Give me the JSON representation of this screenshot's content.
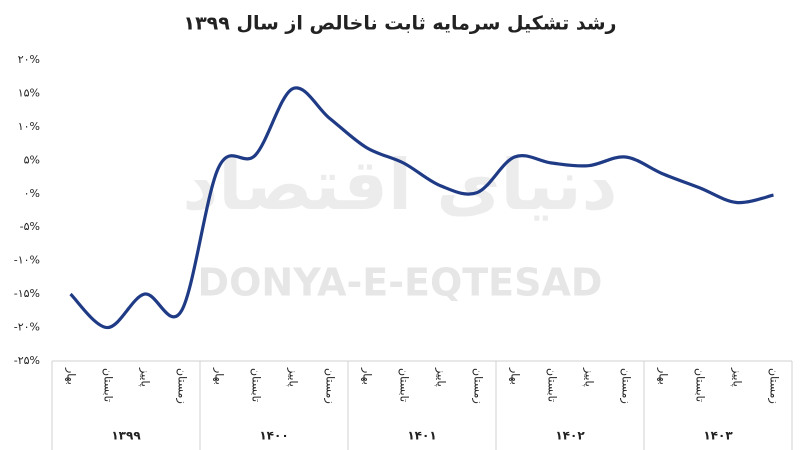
{
  "chart_data": {
    "type": "line",
    "title": "رشد تشکیل سرمایه ثابت ناخالص از سال ۱۳۹۹",
    "watermark": [
      "دنیای اقتصاد",
      "DONYA-E-EQTESAD"
    ],
    "categories": [
      "بهار",
      "تابستان",
      "پاییز",
      "زمستان",
      "بهار",
      "تابستان",
      "پاییز",
      "زمستان",
      "بهار",
      "تابستان",
      "پاییز",
      "زمستان",
      "بهار",
      "تابستان",
      "پاییز",
      "زمستان",
      "بهار",
      "تابستان",
      "پاییز",
      "زمستان"
    ],
    "group_labels": [
      "۱۳۹۹",
      "۱۴۰۰",
      "۱۴۰۱",
      "۱۴۰۲",
      "۱۴۰۳"
    ],
    "values": [
      -15,
      -20,
      -15,
      -17.5,
      3.9,
      5.8,
      15.7,
      11.3,
      6.9,
      4.6,
      1.2,
      0.2,
      5.5,
      4.6,
      4.2,
      5.5,
      3,
      0.9,
      -1.3,
      -0.2
    ],
    "color": "#1f3b86",
    "smooth": true,
    "ylim": [
      -25,
      20
    ],
    "yticks": [
      {
        "value": 20,
        "label": "۲۰%"
      },
      {
        "value": 15,
        "label": "۱۵%"
      },
      {
        "value": 10,
        "label": "۱۰%"
      },
      {
        "value": 5,
        "label": "۵%"
      },
      {
        "value": 0,
        "label": "۰%"
      },
      {
        "value": -5,
        "label": "-۵%"
      },
      {
        "value": -10,
        "label": "-۱۰%"
      },
      {
        "value": -15,
        "label": "-۱۵%"
      },
      {
        "value": -20,
        "label": "-۲۰%"
      },
      {
        "value": -25,
        "label": "-۲۵%"
      }
    ]
  }
}
